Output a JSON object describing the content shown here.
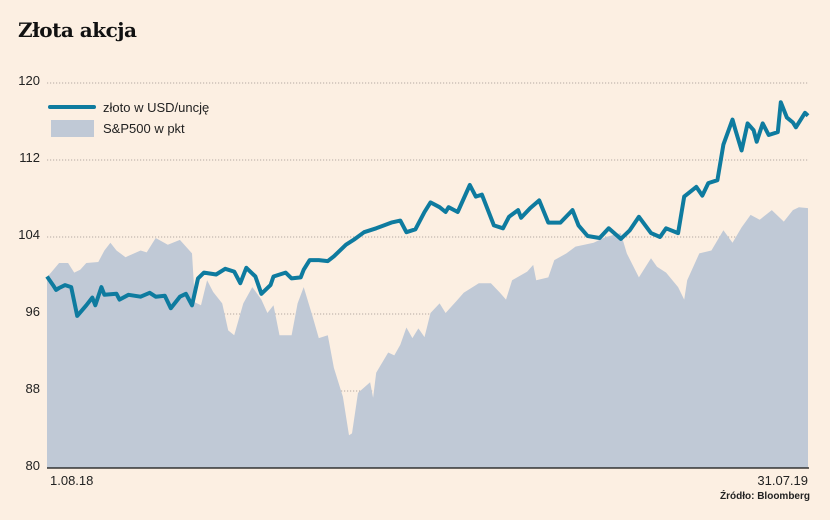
{
  "chart_data": {
    "type": "line",
    "title": "Złota akcja",
    "xlabel": "",
    "ylabel": "",
    "ylim": [
      80,
      120
    ],
    "yticks": [
      "80",
      "88",
      "96",
      "104",
      "112",
      "120"
    ],
    "xticks": [
      "1.08.18",
      "31.07.19"
    ],
    "xlim_days": [
      0,
      252
    ],
    "grid": true,
    "legend_position": "top-left",
    "source": "Źródło: Bloomberg",
    "colors": {
      "gold": "#0e7b9f",
      "sp500": "#c0c9d6",
      "background": "#fcefe2"
    },
    "series": [
      {
        "name": "złoto w USD/uncję",
        "type": "line",
        "points": [
          [
            0,
            99.9
          ],
          [
            2,
            99.0
          ],
          [
            3,
            98.5
          ],
          [
            4,
            98.7
          ],
          [
            6,
            99.0
          ],
          [
            8,
            98.8
          ],
          [
            10,
            95.8
          ],
          [
            13,
            96.9
          ],
          [
            15,
            97.7
          ],
          [
            16,
            96.9
          ],
          [
            18,
            98.8
          ],
          [
            19,
            98.0
          ],
          [
            23,
            98.1
          ],
          [
            24,
            97.5
          ],
          [
            27,
            98.0
          ],
          [
            31,
            97.8
          ],
          [
            34,
            98.2
          ],
          [
            36,
            97.8
          ],
          [
            39,
            97.9
          ],
          [
            41,
            96.6
          ],
          [
            44,
            97.8
          ],
          [
            46,
            98.1
          ],
          [
            48,
            96.9
          ],
          [
            50,
            99.7
          ],
          [
            52,
            100.3
          ],
          [
            56,
            100.1
          ],
          [
            59,
            100.7
          ],
          [
            62,
            100.4
          ],
          [
            64,
            99.2
          ],
          [
            66,
            100.8
          ],
          [
            69,
            99.9
          ],
          [
            71,
            98.1
          ],
          [
            74,
            99.0
          ],
          [
            75,
            99.9
          ],
          [
            79,
            100.3
          ],
          [
            81,
            99.7
          ],
          [
            84,
            99.8
          ],
          [
            85,
            100.6
          ],
          [
            87,
            101.6
          ],
          [
            90,
            101.6
          ],
          [
            93,
            101.5
          ],
          [
            95,
            102.0
          ],
          [
            99,
            103.2
          ],
          [
            102,
            103.8
          ],
          [
            105,
            104.5
          ],
          [
            109,
            104.9
          ],
          [
            114,
            105.5
          ],
          [
            117,
            105.7
          ],
          [
            119,
            104.5
          ],
          [
            122,
            104.8
          ],
          [
            125,
            106.6
          ],
          [
            127,
            107.6
          ],
          [
            130,
            107.1
          ],
          [
            132,
            106.6
          ],
          [
            133,
            107.1
          ],
          [
            136,
            106.6
          ],
          [
            140,
            109.4
          ],
          [
            142,
            108.2
          ],
          [
            144,
            108.4
          ],
          [
            148,
            105.2
          ],
          [
            151,
            104.9
          ],
          [
            153,
            106.1
          ],
          [
            156,
            106.8
          ],
          [
            157,
            106.0
          ],
          [
            160,
            107.0
          ],
          [
            163,
            107.8
          ],
          [
            166,
            105.5
          ],
          [
            170,
            105.5
          ],
          [
            174,
            106.8
          ],
          [
            176,
            105.2
          ],
          [
            179,
            104.1
          ],
          [
            183,
            103.9
          ],
          [
            186,
            104.9
          ],
          [
            190,
            103.8
          ],
          [
            193,
            104.7
          ],
          [
            196,
            106.1
          ],
          [
            200,
            104.4
          ],
          [
            203,
            104.0
          ],
          [
            205,
            104.9
          ],
          [
            209,
            104.4
          ],
          [
            211,
            108.2
          ],
          [
            215,
            109.2
          ],
          [
            217,
            108.3
          ],
          [
            219,
            109.6
          ],
          [
            222,
            109.9
          ],
          [
            224,
            113.6
          ],
          [
            227,
            116.2
          ],
          [
            228,
            115.1
          ],
          [
            230,
            113.0
          ],
          [
            232,
            115.8
          ],
          [
            234,
            115.1
          ],
          [
            235,
            113.9
          ],
          [
            237,
            115.8
          ],
          [
            239,
            114.6
          ],
          [
            242,
            114.9
          ],
          [
            243,
            118.0
          ],
          [
            245,
            116.4
          ],
          [
            247,
            115.9
          ],
          [
            248,
            115.4
          ],
          [
            251,
            116.9
          ],
          [
            252,
            116.6
          ]
        ]
      },
      {
        "name": "S&P500 w pkt",
        "type": "area",
        "points": [
          [
            0,
            99.8
          ],
          [
            4,
            101.3
          ],
          [
            7,
            101.3
          ],
          [
            9,
            100.3
          ],
          [
            11,
            100.6
          ],
          [
            13,
            101.3
          ],
          [
            17,
            101.4
          ],
          [
            19,
            102.6
          ],
          [
            21,
            103.4
          ],
          [
            23,
            102.6
          ],
          [
            26,
            101.9
          ],
          [
            31,
            102.6
          ],
          [
            33,
            102.4
          ],
          [
            36,
            103.9
          ],
          [
            40,
            103.2
          ],
          [
            44,
            103.7
          ],
          [
            48,
            102.3
          ],
          [
            49,
            97.2
          ],
          [
            51,
            96.9
          ],
          [
            53,
            99.5
          ],
          [
            55,
            98.3
          ],
          [
            58,
            97.1
          ],
          [
            60,
            94.3
          ],
          [
            62,
            93.8
          ],
          [
            65,
            97.1
          ],
          [
            68,
            98.8
          ],
          [
            71,
            97.5
          ],
          [
            73,
            96.1
          ],
          [
            75,
            96.9
          ],
          [
            77,
            93.8
          ],
          [
            81,
            93.8
          ],
          [
            83,
            97.1
          ],
          [
            85,
            98.8
          ],
          [
            88,
            95.7
          ],
          [
            90,
            93.5
          ],
          [
            93,
            93.8
          ],
          [
            95,
            90.4
          ],
          [
            98,
            87.4
          ],
          [
            100,
            83.4
          ],
          [
            101,
            83.6
          ],
          [
            103,
            87.8
          ],
          [
            107,
            88.9
          ],
          [
            108,
            87.3
          ],
          [
            109,
            89.9
          ],
          [
            113,
            92.0
          ],
          [
            115,
            91.7
          ],
          [
            117,
            92.8
          ],
          [
            119,
            94.6
          ],
          [
            121,
            93.5
          ],
          [
            123,
            94.5
          ],
          [
            125,
            93.6
          ],
          [
            127,
            96.1
          ],
          [
            130,
            97.1
          ],
          [
            132,
            96.1
          ],
          [
            136,
            97.5
          ],
          [
            138,
            98.2
          ],
          [
            143,
            99.2
          ],
          [
            147,
            99.2
          ],
          [
            150,
            98.2
          ],
          [
            152,
            97.5
          ],
          [
            154,
            99.5
          ],
          [
            159,
            100.4
          ],
          [
            161,
            101.1
          ],
          [
            162,
            99.5
          ],
          [
            166,
            99.8
          ],
          [
            168,
            101.6
          ],
          [
            172,
            102.3
          ],
          [
            175,
            103.0
          ],
          [
            181,
            103.4
          ],
          [
            185,
            104.0
          ],
          [
            190,
            104.4
          ],
          [
            192,
            102.3
          ],
          [
            196,
            99.8
          ],
          [
            200,
            101.8
          ],
          [
            202,
            100.9
          ],
          [
            205,
            100.3
          ],
          [
            209,
            98.8
          ],
          [
            211,
            97.5
          ],
          [
            212,
            99.5
          ],
          [
            216,
            102.3
          ],
          [
            220,
            102.6
          ],
          [
            224,
            104.7
          ],
          [
            227,
            103.4
          ],
          [
            230,
            105.0
          ],
          [
            233,
            106.3
          ],
          [
            236,
            105.8
          ],
          [
            240,
            106.8
          ],
          [
            244,
            105.6
          ],
          [
            247,
            106.8
          ],
          [
            249,
            107.1
          ],
          [
            252,
            107.0
          ]
        ]
      }
    ]
  }
}
